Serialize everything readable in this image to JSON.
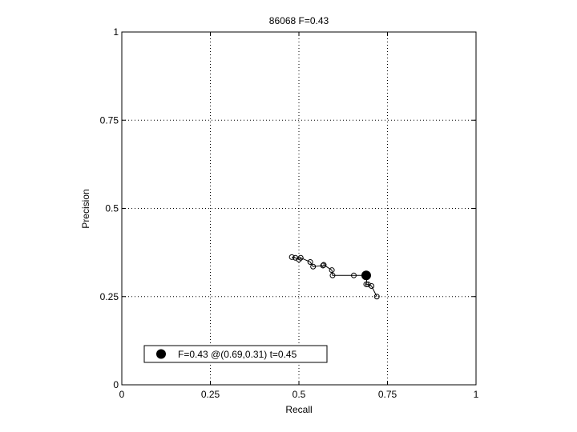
{
  "chart_data": {
    "type": "line",
    "title": "86068 F=0.43",
    "xlabel": "Recall",
    "ylabel": "Precision",
    "xlim": [
      0,
      1
    ],
    "ylim": [
      0,
      1
    ],
    "grid": true,
    "xticks": [
      0,
      0.25,
      0.5,
      0.75,
      1
    ],
    "xtick_labels": [
      "0",
      "0.25",
      "0.5",
      "0.75",
      "1"
    ],
    "yticks": [
      0,
      0.25,
      0.5,
      0.75,
      1
    ],
    "ytick_labels": [
      "0",
      "0.25",
      "0.5",
      "0.75",
      "1"
    ],
    "series": [
      {
        "x": [
          0.72,
          0.705,
          0.695,
          0.69,
          0.693,
          0.655,
          0.595,
          0.593,
          0.57,
          0.568,
          0.54,
          0.532,
          0.505,
          0.5,
          0.49,
          0.48
        ],
        "y": [
          0.25,
          0.28,
          0.285,
          0.285,
          0.31,
          0.31,
          0.31,
          0.325,
          0.34,
          0.338,
          0.335,
          0.348,
          0.36,
          0.355,
          0.36,
          0.362
        ],
        "marker": "open-circle",
        "color": "#000000"
      }
    ],
    "highlight": {
      "x": 0.69,
      "y": 0.31,
      "marker": "filled-circle",
      "color": "#000000"
    },
    "legend": {
      "placement": "bottom-left",
      "label": "F=0.43 @(0.69,0.31) t=0.45"
    }
  }
}
